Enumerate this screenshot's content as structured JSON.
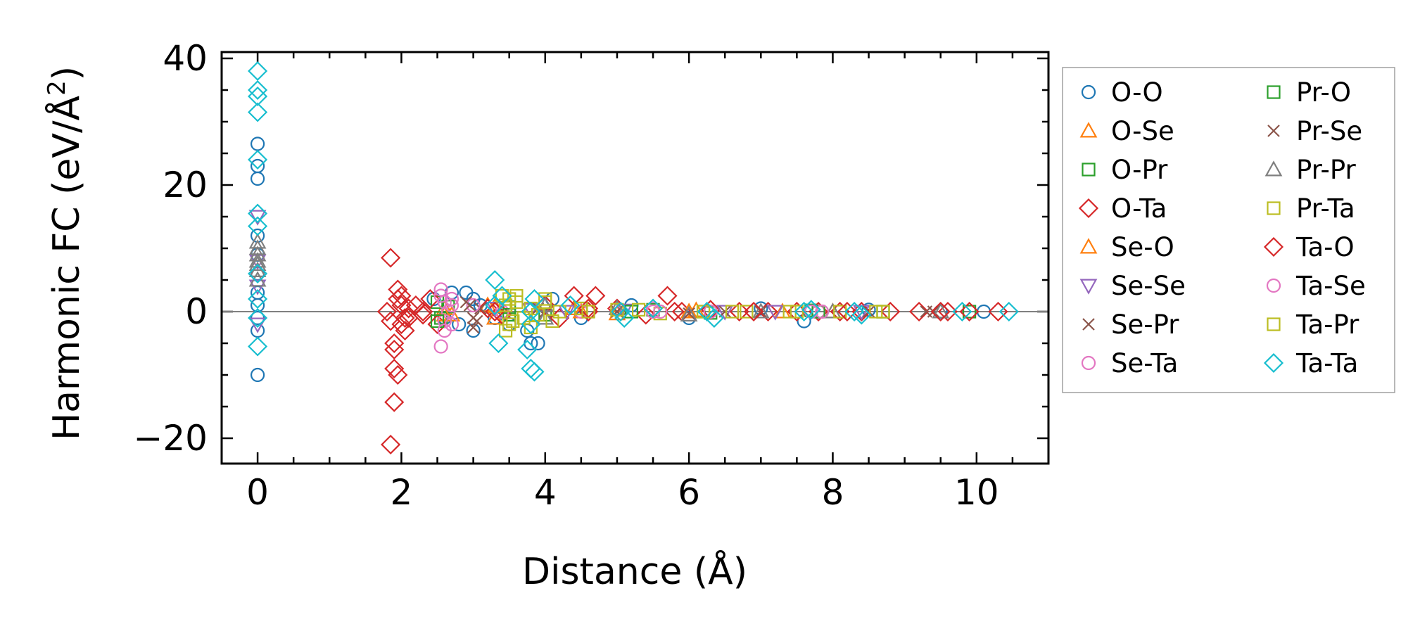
{
  "chart_data": {
    "type": "scatter",
    "title": "",
    "xlabel": "Distance (Å)",
    "ylabel_main": "Harmonic FC (eV/Å",
    "ylabel_sup": "2",
    "ylabel_close": ")",
    "xlim": [
      -0.5,
      11
    ],
    "ylim": [
      -24,
      41
    ],
    "xticks": [
      0,
      2,
      4,
      6,
      8,
      10
    ],
    "yticks": [
      -20,
      0,
      20,
      40
    ],
    "xtick_labels": [
      "0",
      "2",
      "4",
      "6",
      "8",
      "10"
    ],
    "ytick_labels": [
      "−20",
      "0",
      "20",
      "40"
    ],
    "grid": false,
    "reference_line": {
      "y": 0,
      "color": "#808080"
    },
    "legend_position": "right-outside",
    "series": [
      {
        "name": "O-O",
        "marker": "circle",
        "color": "#1f77b4",
        "points": [
          [
            0,
            26.5
          ],
          [
            0,
            23
          ],
          [
            0,
            21
          ],
          [
            0,
            12
          ],
          [
            0,
            9
          ],
          [
            0,
            6
          ],
          [
            0,
            3
          ],
          [
            0,
            1
          ],
          [
            0,
            -1
          ],
          [
            0,
            -3
          ],
          [
            0,
            -10
          ],
          [
            2.45,
            2
          ],
          [
            2.6,
            -1
          ],
          [
            2.7,
            3
          ],
          [
            2.8,
            -2
          ],
          [
            2.9,
            3
          ],
          [
            3.0,
            -3
          ],
          [
            3.0,
            2
          ],
          [
            3.1,
            1
          ],
          [
            3.3,
            -1
          ],
          [
            3.5,
            -2
          ],
          [
            3.75,
            -3
          ],
          [
            3.8,
            -5
          ],
          [
            3.9,
            -5
          ],
          [
            4.1,
            2
          ],
          [
            4.5,
            -1
          ],
          [
            5.2,
            1
          ],
          [
            6.0,
            -1
          ],
          [
            7.0,
            0.5
          ],
          [
            7.6,
            -1.5
          ],
          [
            8.5,
            0.3
          ],
          [
            9.5,
            0
          ],
          [
            10.1,
            0
          ]
        ]
      },
      {
        "name": "O-Se",
        "marker": "triangle-up",
        "color": "#ff7f0e",
        "points": [
          [
            2.6,
            0.5
          ],
          [
            2.7,
            -0.5
          ],
          [
            3.2,
            1
          ],
          [
            3.3,
            -1
          ],
          [
            4.4,
            0.5
          ],
          [
            5.0,
            -0.3
          ],
          [
            6.1,
            0.2
          ],
          [
            7.3,
            0
          ]
        ]
      },
      {
        "name": "O-Pr",
        "marker": "square",
        "color": "#2ca02c",
        "points": [
          [
            2.5,
            1.5
          ],
          [
            2.55,
            -1
          ],
          [
            2.65,
            0.8
          ],
          [
            3.5,
            0.7
          ],
          [
            4.0,
            -0.5
          ],
          [
            5.5,
            0.3
          ],
          [
            6.3,
            -0.2
          ],
          [
            7.7,
            0.2
          ],
          [
            8.7,
            0
          ],
          [
            9.9,
            0
          ]
        ]
      },
      {
        "name": "O-Ta",
        "marker": "diamond",
        "color": "#d62728",
        "points": [
          [
            1.85,
            8.5
          ],
          [
            1.85,
            -21
          ],
          [
            1.9,
            -14.3
          ],
          [
            1.9,
            -9
          ],
          [
            1.95,
            -10
          ],
          [
            1.95,
            3.5
          ],
          [
            1.9,
            -5
          ],
          [
            1.95,
            2
          ],
          [
            2.0,
            -2
          ],
          [
            2.0,
            1
          ],
          [
            2.05,
            -3
          ],
          [
            2.1,
            0.5
          ],
          [
            2.1,
            -1
          ],
          [
            1.8,
            0
          ],
          [
            1.85,
            -1.5
          ],
          [
            2.2,
            1
          ],
          [
            2.3,
            -0.5
          ],
          [
            2.4,
            2
          ],
          [
            2.5,
            -2
          ],
          [
            3.2,
            0.5
          ],
          [
            3.4,
            -0.5
          ],
          [
            4.0,
            1
          ],
          [
            4.4,
            2.5
          ],
          [
            4.7,
            2.5
          ],
          [
            5.7,
            2.5
          ],
          [
            4.2,
            -1
          ],
          [
            4.6,
            0
          ],
          [
            5.0,
            0.5
          ],
          [
            5.4,
            -0.5
          ],
          [
            5.9,
            0
          ],
          [
            6.3,
            0.3
          ],
          [
            6.7,
            0
          ],
          [
            7.1,
            0
          ],
          [
            7.5,
            0
          ],
          [
            7.8,
            0
          ],
          [
            8.1,
            0
          ],
          [
            8.4,
            0
          ],
          [
            8.8,
            0
          ],
          [
            9.2,
            0
          ],
          [
            9.6,
            0
          ],
          [
            9.9,
            0
          ],
          [
            10.3,
            0
          ]
        ]
      },
      {
        "name": "Se-O",
        "marker": "triangle-up",
        "color": "#ff7f0e",
        "points": [
          [
            2.6,
            -0.5
          ],
          [
            3.3,
            0.8
          ],
          [
            4.5,
            0
          ],
          [
            6.0,
            0
          ],
          [
            8.0,
            0
          ]
        ]
      },
      {
        "name": "Se-Se",
        "marker": "triangle-down",
        "color": "#9467bd",
        "points": [
          [
            0,
            15
          ],
          [
            0,
            8
          ],
          [
            0,
            4
          ],
          [
            0,
            -2
          ],
          [
            3.3,
            0.5
          ],
          [
            3.8,
            0.3
          ],
          [
            4.3,
            0
          ],
          [
            5.1,
            0.2
          ],
          [
            6.5,
            0
          ],
          [
            7.2,
            0
          ],
          [
            8.4,
            0
          ]
        ]
      },
      {
        "name": "Se-Pr",
        "marker": "x",
        "color": "#8c564b",
        "points": [
          [
            2.9,
            1.5
          ],
          [
            3.0,
            -1
          ],
          [
            3.1,
            0.5
          ],
          [
            3.0,
            -2.5
          ],
          [
            4.0,
            0
          ],
          [
            5.0,
            0
          ],
          [
            6.0,
            -0.3
          ],
          [
            7.0,
            0
          ],
          [
            8.5,
            0
          ],
          [
            9.3,
            0
          ]
        ]
      },
      {
        "name": "Se-Ta",
        "marker": "circle",
        "color": "#e377c2",
        "points": [
          [
            2.55,
            3.5
          ],
          [
            2.55,
            -5.5
          ],
          [
            2.6,
            1.5
          ],
          [
            2.6,
            -1.5
          ],
          [
            2.7,
            2
          ],
          [
            2.7,
            -2
          ],
          [
            2.65,
            0
          ],
          [
            3.0,
            1
          ],
          [
            3.4,
            0
          ],
          [
            4.5,
            0
          ],
          [
            5.5,
            0.5
          ],
          [
            6.3,
            0
          ],
          [
            7.8,
            0
          ]
        ]
      },
      {
        "name": "Pr-O",
        "marker": "square",
        "color": "#2ca02c",
        "points": [
          [
            2.5,
            -1.5
          ],
          [
            3.5,
            -0.5
          ],
          [
            4.5,
            0.5
          ],
          [
            5.2,
            0
          ],
          [
            6.2,
            0
          ],
          [
            7.8,
            0
          ],
          [
            8.7,
            0
          ]
        ]
      },
      {
        "name": "Pr-Se",
        "marker": "x",
        "color": "#8c564b",
        "points": [
          [
            2.95,
            1
          ],
          [
            3.05,
            -1.5
          ],
          [
            3.9,
            0.5
          ],
          [
            5.0,
            0
          ],
          [
            6.5,
            0
          ],
          [
            9.4,
            0
          ]
        ]
      },
      {
        "name": "Pr-Pr",
        "marker": "triangle-up",
        "color": "#7f7f7f",
        "points": [
          [
            0,
            11
          ],
          [
            0,
            10
          ],
          [
            0,
            9
          ],
          [
            0,
            8
          ],
          [
            0,
            7.5
          ],
          [
            0,
            6.5
          ],
          [
            0,
            5
          ],
          [
            4.0,
            1
          ],
          [
            4.0,
            -1
          ],
          [
            5.0,
            0.5
          ],
          [
            6.0,
            -0.5
          ],
          [
            7.0,
            0
          ],
          [
            8.0,
            0
          ],
          [
            9.5,
            0
          ]
        ]
      },
      {
        "name": "Pr-Ta",
        "marker": "square",
        "color": "#bcbd22",
        "points": [
          [
            3.4,
            2.5
          ],
          [
            3.45,
            -3
          ],
          [
            3.5,
            2
          ],
          [
            3.5,
            -2
          ],
          [
            3.6,
            1.5
          ],
          [
            3.7,
            -1
          ],
          [
            3.8,
            0.5
          ],
          [
            3.9,
            -0.5
          ],
          [
            4.0,
            1.5
          ],
          [
            4.1,
            -1.5
          ],
          [
            4.2,
            0
          ],
          [
            4.5,
            0.5
          ],
          [
            5.0,
            0.3
          ],
          [
            5.6,
            -0.3
          ],
          [
            6.2,
            0
          ],
          [
            6.8,
            0
          ],
          [
            7.4,
            0
          ],
          [
            8.1,
            0
          ],
          [
            8.7,
            0
          ]
        ]
      },
      {
        "name": "Ta-O",
        "marker": "diamond",
        "color": "#d62728",
        "points": [
          [
            1.9,
            -6
          ],
          [
            2.0,
            2.5
          ],
          [
            2.05,
            -1
          ],
          [
            2.3,
            0
          ],
          [
            3.3,
            0
          ],
          [
            4.6,
            0.5
          ],
          [
            5.8,
            0
          ],
          [
            6.9,
            0
          ],
          [
            8.2,
            0
          ],
          [
            9.5,
            0
          ]
        ]
      },
      {
        "name": "Ta-Se",
        "marker": "circle",
        "color": "#e377c2",
        "points": [
          [
            2.55,
            2.5
          ],
          [
            2.6,
            -3
          ],
          [
            2.7,
            1
          ],
          [
            5.5,
            0
          ],
          [
            5.6,
            0
          ],
          [
            7.7,
            0
          ],
          [
            7.85,
            0
          ]
        ]
      },
      {
        "name": "Ta-Pr",
        "marker": "square",
        "color": "#bcbd22",
        "points": [
          [
            3.45,
            1
          ],
          [
            3.55,
            -1.5
          ],
          [
            3.6,
            2.5
          ],
          [
            3.8,
            -2.5
          ],
          [
            4.0,
            2
          ],
          [
            4.6,
            0
          ],
          [
            5.3,
            0.3
          ],
          [
            6.6,
            0
          ],
          [
            7.5,
            0
          ],
          [
            8.6,
            0
          ]
        ]
      },
      {
        "name": "Ta-Ta",
        "marker": "diamond",
        "color": "#17becf",
        "points": [
          [
            0,
            38
          ],
          [
            0,
            35
          ],
          [
            0,
            34
          ],
          [
            0,
            31.5
          ],
          [
            0,
            24
          ],
          [
            0,
            15.5
          ],
          [
            0,
            13.5
          ],
          [
            0,
            6
          ],
          [
            0,
            2
          ],
          [
            0,
            -1
          ],
          [
            0,
            -5.5
          ],
          [
            3.3,
            5
          ],
          [
            3.3,
            1
          ],
          [
            3.35,
            -5
          ],
          [
            3.4,
            2.5
          ],
          [
            3.75,
            -6
          ],
          [
            3.8,
            -9
          ],
          [
            3.85,
            -9.5
          ],
          [
            3.8,
            0
          ],
          [
            3.85,
            2
          ],
          [
            3.8,
            -2
          ],
          [
            4.35,
            1
          ],
          [
            5.05,
            0
          ],
          [
            5.1,
            -1
          ],
          [
            5.5,
            0.5
          ],
          [
            6.25,
            0
          ],
          [
            6.35,
            -1
          ],
          [
            7.6,
            0
          ],
          [
            7.7,
            0.3
          ],
          [
            8.3,
            0
          ],
          [
            8.4,
            -0.5
          ],
          [
            9.8,
            0
          ],
          [
            10.45,
            0
          ]
        ]
      }
    ]
  }
}
